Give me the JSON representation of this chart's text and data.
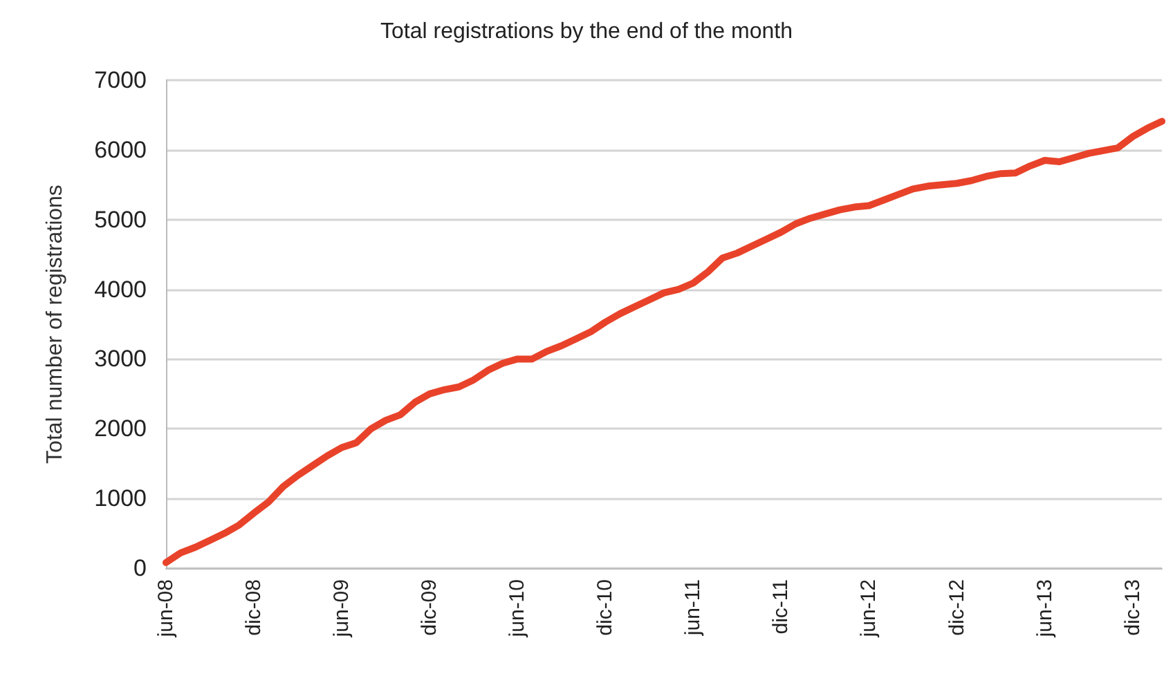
{
  "chart_data": {
    "type": "line",
    "title": "Total registrations by the end of the month",
    "ylabel": "Total number of registrations",
    "categories": [
      "jun-08",
      null,
      null,
      null,
      null,
      null,
      "dic-08",
      null,
      null,
      null,
      null,
      null,
      "jun-09",
      null,
      null,
      null,
      null,
      null,
      "dic-09",
      null,
      null,
      null,
      null,
      null,
      "jun-10",
      null,
      null,
      null,
      null,
      null,
      "dic-10",
      null,
      null,
      null,
      null,
      null,
      "jun-11",
      null,
      null,
      null,
      null,
      null,
      "dic-11",
      null,
      null,
      null,
      null,
      null,
      "jun-12",
      null,
      null,
      null,
      null,
      null,
      "dic-12",
      null,
      null,
      null,
      null,
      null,
      "jun-13",
      null,
      null,
      null,
      null,
      null,
      "dic-13",
      null,
      null
    ],
    "series": [
      {
        "color": "#e8432a",
        "values": [
          80,
          220,
          300,
          400,
          500,
          620,
          790,
          950,
          1170,
          1330,
          1470,
          1610,
          1730,
          1800,
          2000,
          2120,
          2200,
          2380,
          2500,
          2560,
          2600,
          2700,
          2840,
          2940,
          3000,
          3000,
          3110,
          3190,
          3290,
          3390,
          3530,
          3650,
          3750,
          3850,
          3950,
          4000,
          4090,
          4250,
          4450,
          4520,
          4620,
          4720,
          4820,
          4940,
          5020,
          5080,
          5140,
          5180,
          5200,
          5280,
          5360,
          5440,
          5480,
          5500,
          5520,
          5560,
          5620,
          5660,
          5670,
          5770,
          5850,
          5830,
          5890,
          5950,
          5990,
          6030,
          6190,
          6310,
          6410
        ]
      }
    ],
    "ylim": [
      0,
      7000
    ],
    "yticks": [
      0,
      1000,
      2000,
      3000,
      4000,
      5000,
      6000,
      7000
    ],
    "grid": "y",
    "marker": "none",
    "line_style": "solid"
  }
}
